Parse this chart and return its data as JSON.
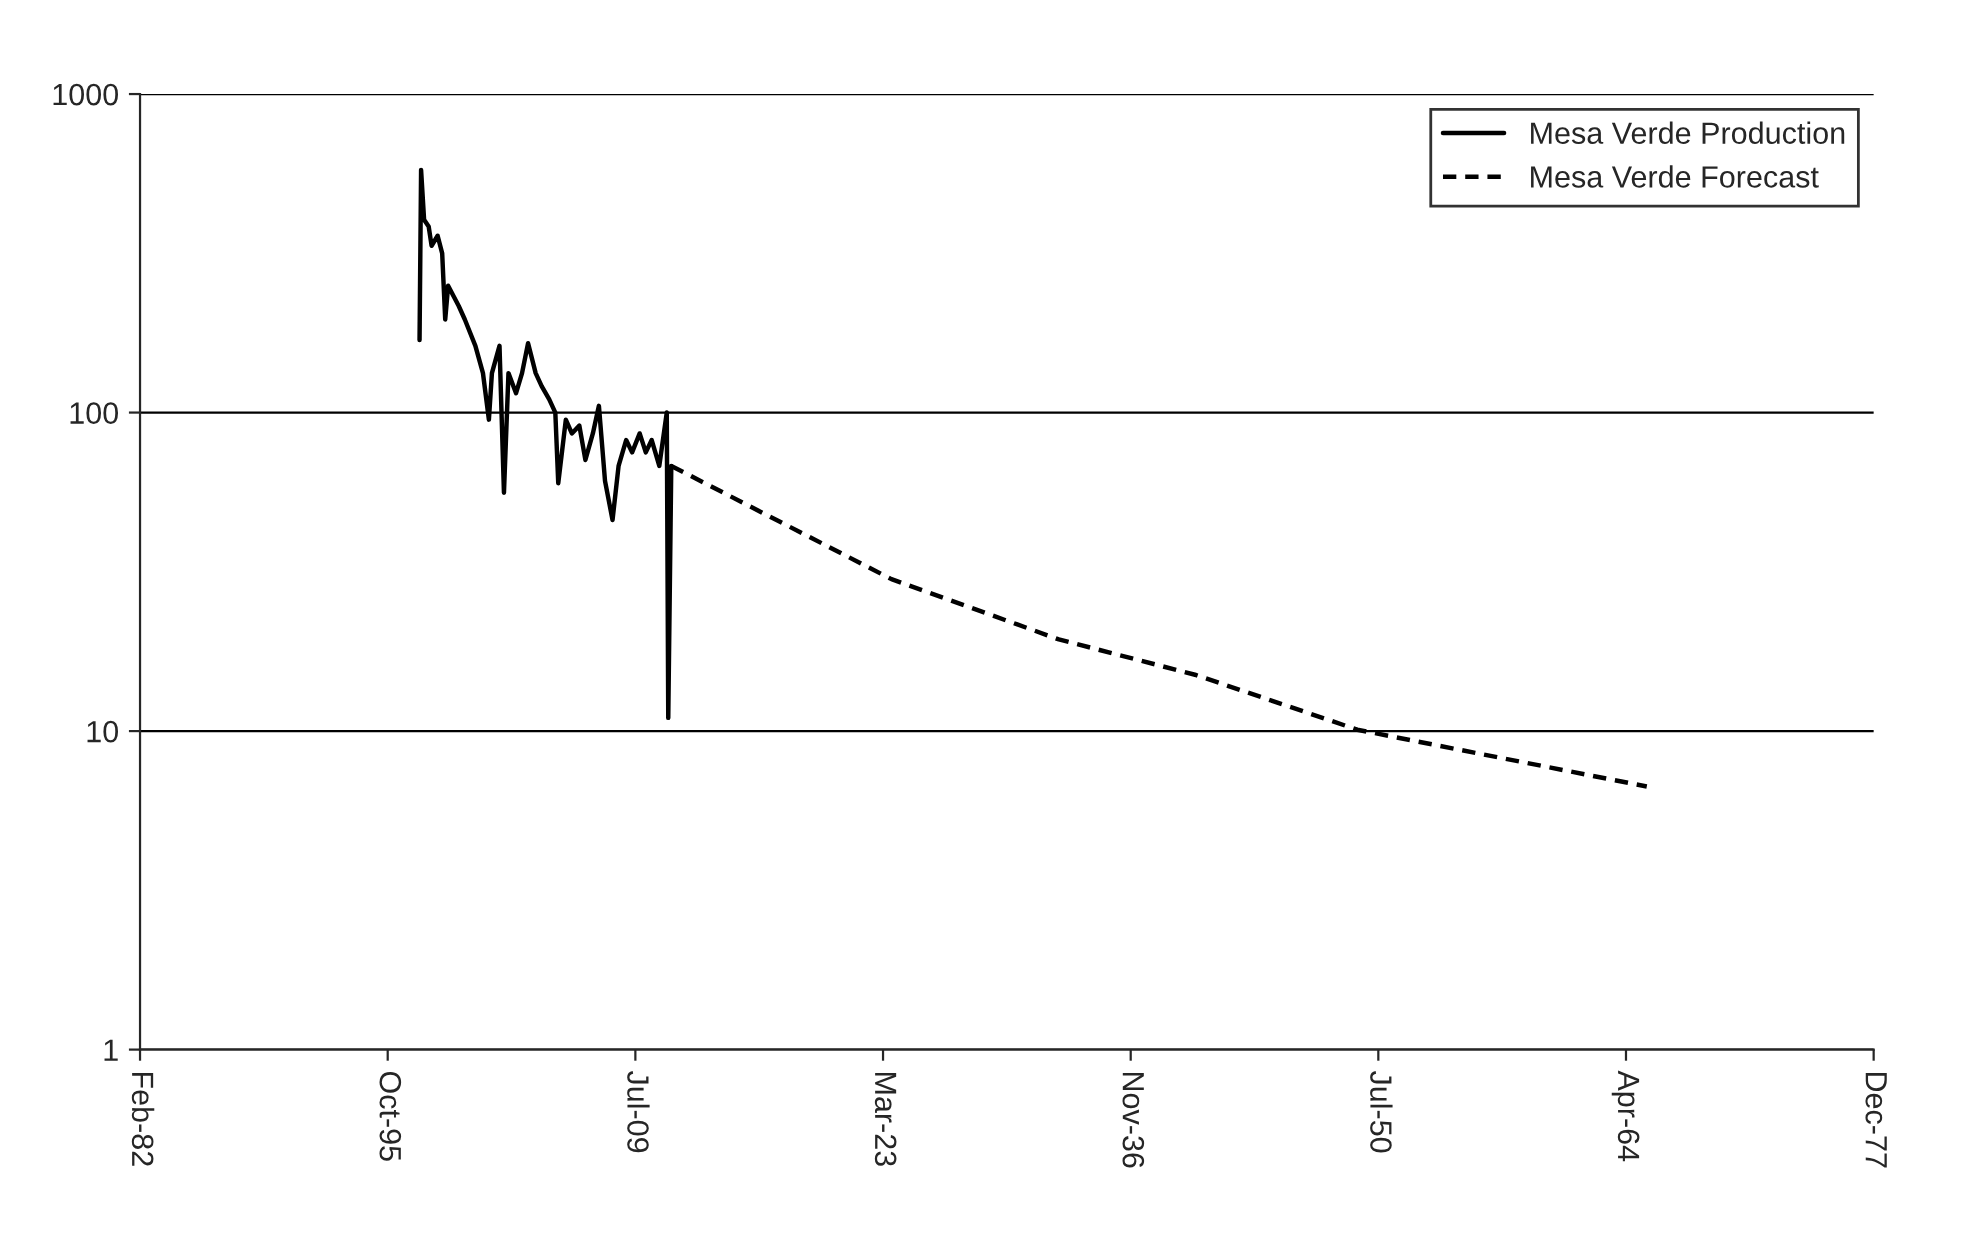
{
  "chart_data": {
    "type": "line",
    "log": "y",
    "grid": "y",
    "legend": "top right",
    "xlim": [
      "1982-02-18",
      "2077-12-15"
    ],
    "xticks": [
      {
        "value": "1982-02-18",
        "label": "Feb-82"
      },
      {
        "value": "1995-10-28",
        "label": "Oct-95"
      },
      {
        "value": "2009-07-06",
        "label": "Jul-09"
      },
      {
        "value": "2023-03-15",
        "label": "Mar-23"
      },
      {
        "value": "2036-11-21",
        "label": "Nov-36"
      },
      {
        "value": "2050-07-30",
        "label": "Jul-50"
      },
      {
        "value": "2064-04-07",
        "label": "Apr-64"
      },
      {
        "value": "2077-12-15",
        "label": "Dec-77"
      }
    ],
    "ylim": [
      1,
      1000
    ],
    "yticks": [
      1,
      10,
      100,
      1000
    ],
    "series": [
      {
        "name": "Mesa Verde Production",
        "color": "#000000",
        "line_style": "solid",
        "x": [
          "1997-08",
          "1997-09",
          "1997-11",
          "1998-02",
          "1998-04",
          "1998-08",
          "1998-11",
          "1999-01",
          "1999-03",
          "1999-10",
          "2000-02",
          "2000-09",
          "2001-02",
          "2001-06",
          "2001-08",
          "2002-01",
          "2002-04",
          "2002-07",
          "2002-12",
          "2003-04",
          "2003-08",
          "2004-01",
          "2004-05",
          "2004-10",
          "2005-02",
          "2005-04",
          "2005-09",
          "2006-01",
          "2006-06",
          "2006-10",
          "2007-03",
          "2007-07",
          "2007-11",
          "2008-04",
          "2008-08",
          "2009-01",
          "2009-05",
          "2009-10",
          "2010-02",
          "2010-06",
          "2010-11",
          "2011-04",
          "2011-05",
          "2011-07"
        ],
        "values": [
          169,
          578,
          403,
          384,
          334,
          359,
          316,
          196,
          250,
          216,
          196,
          162,
          133,
          95,
          133,
          162,
          56,
          133,
          115,
          133,
          165,
          133,
          121,
          110,
          100,
          60,
          95,
          86,
          91,
          71,
          86,
          105,
          61,
          46,
          68,
          82,
          75,
          86,
          75,
          82,
          68,
          100,
          11,
          68
        ]
      },
      {
        "name": "Mesa Verde Forecast",
        "color": "#000000",
        "line_style": "dashed",
        "x": [
          "2011-07",
          "2023-09",
          "2032-12",
          "2040-07",
          "2049-06",
          "2065-06"
        ],
        "values": [
          68,
          30,
          19.4,
          15,
          10.1,
          6.7
        ]
      }
    ]
  }
}
